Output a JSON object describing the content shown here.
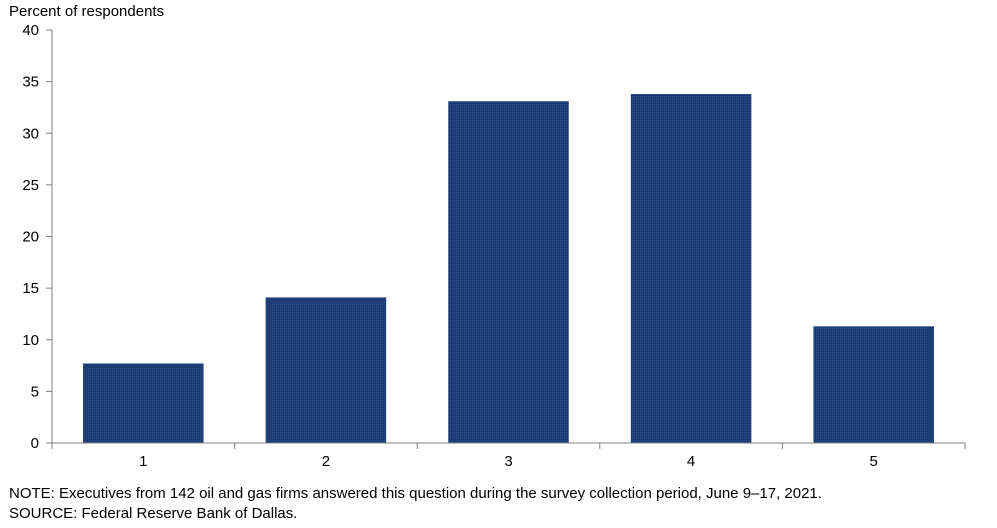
{
  "chart_data": {
    "type": "bar",
    "ylabel": "Percent of respondents",
    "categories": [
      "1",
      "2",
      "3",
      "4",
      "5"
    ],
    "values": [
      7.7,
      14.1,
      33.1,
      33.8,
      11.3
    ],
    "ylim": [
      0,
      40
    ],
    "yticks": [
      0,
      5,
      10,
      15,
      20,
      25,
      30,
      35,
      40
    ],
    "grid": false,
    "legend": "none",
    "bar_color": "#1c3a72"
  },
  "footer": {
    "note": "NOTE:  Executives  from  142  oil  and  gas  firms  answered  this  question  during  the  survey  collection  period,  June  9–17,  2021.",
    "source": "SOURCE:  Federal  Reserve  Bank  of  Dallas."
  }
}
